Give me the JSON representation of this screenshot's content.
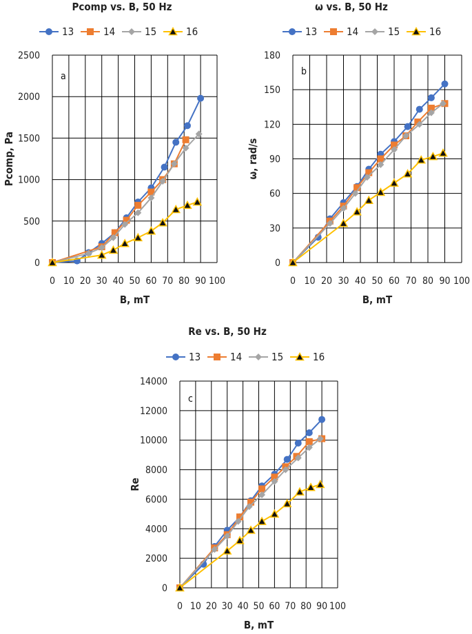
{
  "chart_data": [
    {
      "type": "line",
      "panel_label": "a",
      "title": "Pcomp vs. B, 50 Hz",
      "xlabel": "B, mT",
      "ylabel": "Pcomp, Pa",
      "xlim": [
        0,
        100
      ],
      "ylim": [
        0,
        2500
      ],
      "xticks": [
        0,
        10,
        20,
        30,
        40,
        50,
        60,
        70,
        80,
        90,
        100
      ],
      "yticks": [
        0,
        500,
        1000,
        1500,
        2000,
        2500
      ],
      "grid": true,
      "legend_position": "top",
      "series": [
        {
          "name": "13",
          "color": "#4472C4",
          "marker": "circle",
          "x": [
            0,
            15,
            22,
            30,
            38,
            45,
            52,
            60,
            68,
            75,
            82,
            90
          ],
          "y": [
            0,
            20,
            120,
            230,
            360,
            540,
            730,
            900,
            1150,
            1450,
            1650,
            1980
          ]
        },
        {
          "name": "14",
          "color": "#ED7D31",
          "marker": "square",
          "x": [
            0,
            30,
            38,
            45,
            52,
            60,
            67,
            74,
            81
          ],
          "y": [
            0,
            190,
            360,
            510,
            690,
            850,
            1000,
            1190,
            1480
          ]
        },
        {
          "name": "15",
          "color": "#A5A5A5",
          "marker": "diamond",
          "x": [
            0,
            22,
            30,
            37,
            44,
            52,
            60,
            67,
            74,
            81,
            89
          ],
          "y": [
            0,
            110,
            180,
            300,
            460,
            600,
            780,
            980,
            1190,
            1380,
            1550
          ]
        },
        {
          "name": "16",
          "color": "#FFC000",
          "marker": "triangle",
          "x": [
            0,
            30,
            37,
            44,
            52,
            60,
            67,
            75,
            82,
            88
          ],
          "y": [
            0,
            90,
            150,
            230,
            300,
            380,
            480,
            640,
            690,
            730
          ]
        }
      ]
    },
    {
      "type": "line",
      "panel_label": "b",
      "title": "ω vs. B, 50 Hz",
      "xlabel": "B, mT",
      "ylabel": "ω, rad/s",
      "xlim": [
        0,
        100
      ],
      "ylim": [
        0,
        180
      ],
      "xticks": [
        0,
        10,
        20,
        30,
        40,
        50,
        60,
        70,
        80,
        90,
        100
      ],
      "yticks": [
        0,
        30,
        60,
        90,
        120,
        150,
        180
      ],
      "grid": true,
      "legend_position": "top",
      "series": [
        {
          "name": "13",
          "color": "#4472C4",
          "marker": "circle",
          "x": [
            0,
            15,
            22,
            30,
            38,
            45,
            52,
            60,
            68,
            75,
            82,
            90
          ],
          "y": [
            0,
            22,
            38,
            52,
            66,
            81,
            94,
            105,
            118,
            133,
            143,
            155
          ]
        },
        {
          "name": "14",
          "color": "#ED7D31",
          "marker": "square",
          "x": [
            0,
            22,
            30,
            38,
            45,
            52,
            60,
            67,
            74,
            82,
            90
          ],
          "y": [
            0,
            36,
            49,
            65,
            78,
            90,
            102,
            110,
            122,
            134,
            138
          ]
        },
        {
          "name": "15",
          "color": "#A5A5A5",
          "marker": "diamond",
          "x": [
            0,
            22,
            30,
            37,
            44,
            52,
            60,
            67,
            75,
            82,
            89
          ],
          "y": [
            0,
            34,
            47,
            60,
            74,
            85,
            98,
            110,
            120,
            130,
            138
          ]
        },
        {
          "name": "16",
          "color": "#FFC000",
          "marker": "triangle",
          "x": [
            0,
            30,
            38,
            45,
            52,
            60,
            68,
            76,
            83,
            89
          ],
          "y": [
            0,
            34,
            44,
            54,
            61,
            69,
            77,
            89,
            92,
            95
          ]
        }
      ]
    },
    {
      "type": "line",
      "panel_label": "c",
      "title": "Re vs. B, 50 Hz",
      "xlabel": "B, mT",
      "ylabel": "Re",
      "xlim": [
        0,
        100
      ],
      "ylim": [
        0,
        14000
      ],
      "xticks": [
        0,
        10,
        20,
        30,
        40,
        50,
        60,
        70,
        80,
        90,
        100
      ],
      "yticks": [
        0,
        2000,
        4000,
        6000,
        8000,
        10000,
        12000,
        14000
      ],
      "grid": true,
      "legend_position": "top",
      "series": [
        {
          "name": "13",
          "color": "#4472C4",
          "marker": "circle",
          "x": [
            0,
            15,
            22,
            30,
            38,
            45,
            52,
            60,
            68,
            75,
            82,
            90
          ],
          "y": [
            0,
            1600,
            2800,
            3900,
            4800,
            5900,
            6900,
            7700,
            8700,
            9800,
            10500,
            11400
          ]
        },
        {
          "name": "14",
          "color": "#ED7D31",
          "marker": "square",
          "x": [
            0,
            22,
            30,
            38,
            45,
            52,
            60,
            67,
            74,
            82,
            90
          ],
          "y": [
            0,
            2700,
            3600,
            4800,
            5800,
            6700,
            7500,
            8200,
            8900,
            9900,
            10100
          ]
        },
        {
          "name": "15",
          "color": "#A5A5A5",
          "marker": "diamond",
          "x": [
            0,
            22,
            30,
            37,
            44,
            52,
            60,
            67,
            75,
            82,
            89
          ],
          "y": [
            0,
            2600,
            3500,
            4500,
            5500,
            6300,
            7200,
            8000,
            8800,
            9500,
            10100
          ]
        },
        {
          "name": "16",
          "color": "#FFC000",
          "marker": "triangle",
          "x": [
            0,
            30,
            38,
            45,
            52,
            60,
            68,
            76,
            83,
            89
          ],
          "y": [
            0,
            2500,
            3200,
            3900,
            4500,
            5000,
            5700,
            6500,
            6800,
            7000
          ]
        }
      ]
    }
  ]
}
